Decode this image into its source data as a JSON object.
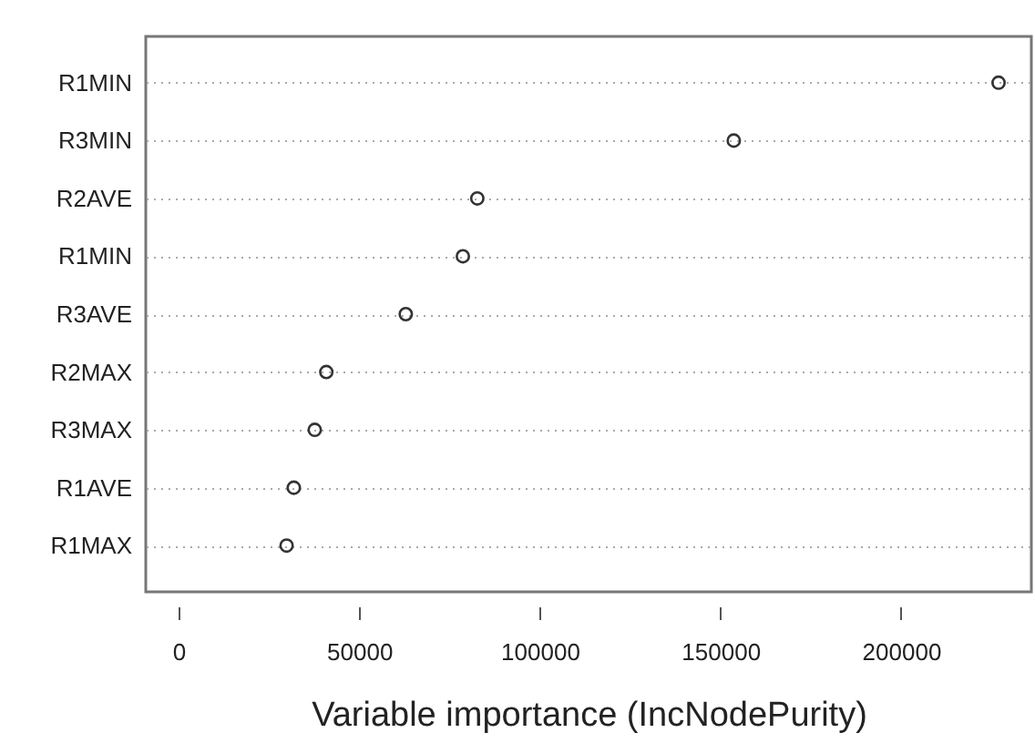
{
  "chart_data": {
    "type": "scatter",
    "orientation": "horizontal",
    "xlabel": "Variable importance (IncNodePurity)",
    "categories": [
      "R1MIN",
      "R3MIN",
      "R2AVE",
      "R1MIN",
      "R3AVE",
      "R2MAX",
      "R3MAX",
      "R1AVE",
      "R1MAX"
    ],
    "values": [
      227000,
      153700,
      82700,
      78700,
      62900,
      40900,
      37700,
      31900,
      29900
    ],
    "color": "#333333",
    "marker": "circle",
    "xlim": [
      -9080,
      236080
    ],
    "xticks": [
      0,
      50000,
      100000,
      150000,
      200000
    ],
    "grid": "y"
  }
}
